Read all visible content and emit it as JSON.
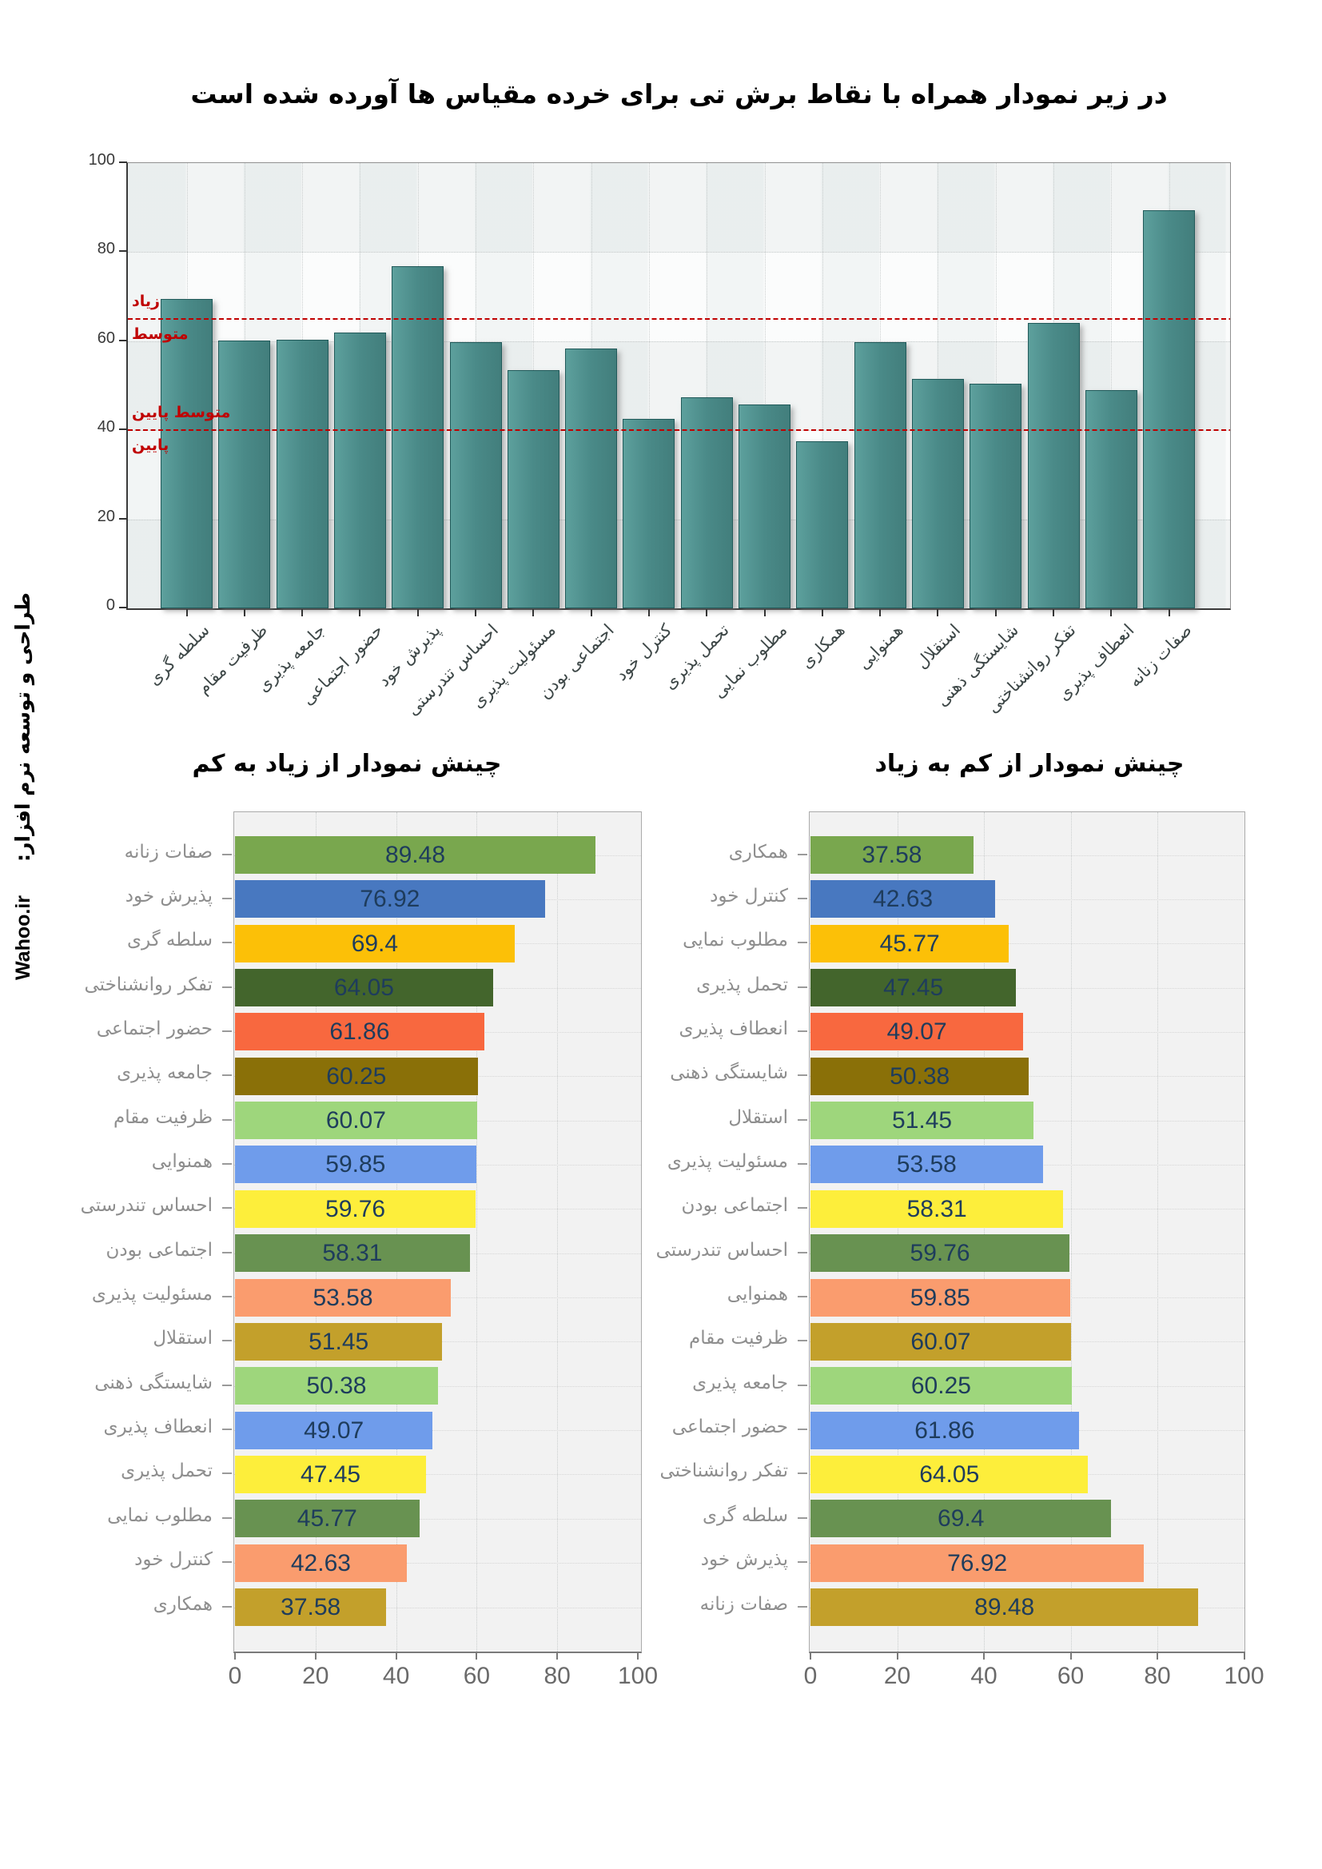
{
  "title": "در زیر نمودار همراه با نقاط برش تی برای خرده مقیاس ها آورده شده است",
  "credit": {
    "label": "طراحی و توسعه نرم افزار:",
    "brand": "Wahoo.ir"
  },
  "colors": {
    "top_bar_fill": "#4a8a87",
    "top_bar_border": "#215a5a",
    "cutoff_line": "#c00000",
    "value_label": "#1e3c5c",
    "palette": [
      "#79a74e",
      "#4878c0",
      "#fcc007",
      "#43652c",
      "#f8683f",
      "#8a7008",
      "#9ed67c",
      "#6f9ceb",
      "#fdee3b",
      "#689251",
      "#fa9c6e",
      "#c3a02b",
      "#9ed67c",
      "#6f9ceb",
      "#fdee3b",
      "#689251",
      "#fa9c6e",
      "#c3a02b"
    ]
  },
  "chart_data": [
    {
      "name": "subscale-scores",
      "type": "bar",
      "title": "",
      "categories": [
        "سلطه گری",
        "ظرفیت مقام",
        "جامعه پذیری",
        "حضور اجتماعی",
        "پذیرش خود",
        "احساس تندرستی",
        "مسئولیت پذیری",
        "اجتماعی بودن",
        "کنترل خود",
        "تحمل پذیری",
        "مطلوب نمایی",
        "همکاری",
        "همنوایی",
        "استقلال",
        "شایستگی ذهنی",
        "تفکر روانشناختی",
        "انعطاف پذیری",
        "صفات زنانه"
      ],
      "values": [
        69.4,
        60.07,
        60.25,
        61.86,
        76.92,
        59.76,
        53.58,
        58.31,
        42.63,
        47.45,
        45.77,
        37.58,
        59.85,
        51.45,
        50.38,
        64.05,
        49.07,
        89.48
      ],
      "ylim": [
        0,
        100
      ],
      "yticks": [
        0,
        20,
        40,
        60,
        80,
        100
      ],
      "grid": "dotted",
      "cutoffs": [
        {
          "value": 65,
          "label_above": "زیاد",
          "label_below": "متوسط"
        },
        {
          "value": 40,
          "label_above": "متوسط پایین",
          "label_below": "پایین"
        }
      ]
    },
    {
      "name": "sorted-desc",
      "type": "bar-horizontal",
      "title": "چینش نمودار از زیاد به کم",
      "categories": [
        "صفات زنانه",
        "پذیرش خود",
        "سلطه گری",
        "تفکر روانشناختی",
        "حضور اجتماعی",
        "جامعه پذیری",
        "ظرفیت مقام",
        "همنوایی",
        "احساس تندرستی",
        "اجتماعی بودن",
        "مسئولیت پذیری",
        "استقلال",
        "شایستگی ذهنی",
        "انعطاف پذیری",
        "تحمل پذیری",
        "مطلوب نمایی",
        "کنترل خود",
        "همکاری"
      ],
      "values": [
        89.48,
        76.92,
        69.4,
        64.05,
        61.86,
        60.25,
        60.07,
        59.85,
        59.76,
        58.31,
        53.58,
        51.45,
        50.38,
        49.07,
        47.45,
        45.77,
        42.63,
        37.58
      ],
      "value_labels": [
        "89.48",
        "76.92",
        "69.4",
        "64.05",
        "61.86",
        "60.25",
        "60.07",
        "59.85",
        "59.76",
        "58.31",
        "53.58",
        "51.45",
        "50.38",
        "49.07",
        "47.45",
        "45.77",
        "42.63",
        "37.58"
      ],
      "xlim": [
        0,
        100
      ],
      "xticks": [
        0,
        20,
        40,
        60,
        80,
        100
      ],
      "legend": "none"
    },
    {
      "name": "sorted-asc",
      "type": "bar-horizontal",
      "title": "چینش نمودار از کم به زیاد",
      "categories": [
        "همکاری",
        "کنترل خود",
        "مطلوب نمایی",
        "تحمل پذیری",
        "انعطاف پذیری",
        "شایستگی ذهنی",
        "استقلال",
        "مسئولیت پذیری",
        "اجتماعی بودن",
        "احساس تندرستی",
        "همنوایی",
        "ظرفیت مقام",
        "جامعه پذیری",
        "حضور اجتماعی",
        "تفکر روانشناختی",
        "سلطه گری",
        "پذیرش خود",
        "صفات زنانه"
      ],
      "values": [
        37.58,
        42.63,
        45.77,
        47.45,
        49.07,
        50.38,
        51.45,
        53.58,
        58.31,
        59.76,
        59.85,
        60.07,
        60.25,
        61.86,
        64.05,
        69.4,
        76.92,
        89.48
      ],
      "value_labels": [
        "37.58",
        "42.63",
        "45.77",
        "47.45",
        "49.07",
        "50.38",
        "51.45",
        "53.58",
        "58.31",
        "59.76",
        "59.85",
        "60.07",
        "60.25",
        "61.86",
        "64.05",
        "69.4",
        "76.92",
        "89.48"
      ],
      "xlim": [
        0,
        100
      ],
      "xticks": [
        0,
        20,
        40,
        60,
        80,
        100
      ],
      "legend": "none"
    }
  ]
}
